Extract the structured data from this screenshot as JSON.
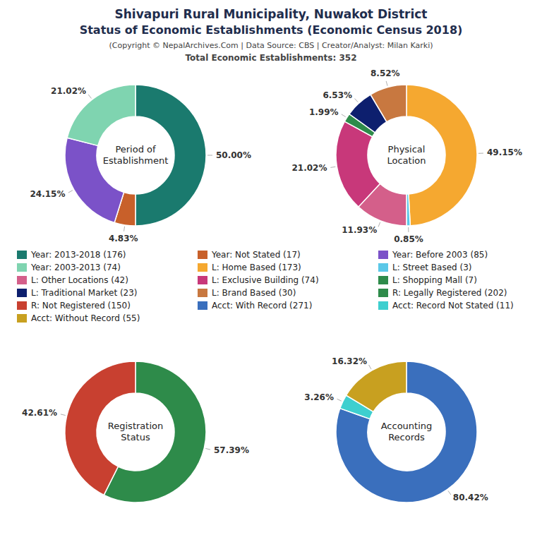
{
  "title": [
    "Shivapuri Rural Municipality, Nuwakot District",
    "Status of Economic Establishments (Economic Census 2018)"
  ],
  "subtitle": [
    "(Copyright © NepalArchives.Com | Data Source: CBS | Creator/Analyst: Milan Karki)",
    "Total Economic Establishments: 352"
  ],
  "chart_data": [
    {
      "type": "pie",
      "title": "Period of\nEstablishment",
      "categories": [
        "Year: 2013-2018 (176)",
        "Year: Not Stated (17)",
        "Year: Before 2003 (85)",
        "Year: 2003-2013 (74)"
      ],
      "values": [
        50.0,
        4.83,
        24.15,
        21.02
      ],
      "value_labels": [
        "50.00%",
        "4.83%",
        "24.15%",
        "21.02%"
      ],
      "colors": [
        "#1a7a6e",
        "#c8602a",
        "#7b52c8",
        "#7fd4b0"
      ],
      "data_labels": true
    },
    {
      "type": "pie",
      "title": "Physical\nLocation",
      "categories": [
        "L: Home Based (173)",
        "L: Street Based (3)",
        "L: Other Locations (42)",
        "L: Exclusive Building (74)",
        "L: Shopping Mall (7)",
        "L: Traditional Market (23)",
        "L: Brand Based (30)"
      ],
      "values": [
        49.15,
        0.85,
        11.93,
        21.02,
        1.99,
        6.53,
        8.52
      ],
      "value_labels": [
        "49.15%",
        "0.85%",
        "11.93%",
        "21.02%",
        "1.99%",
        "6.53%",
        "8.52%"
      ],
      "colors": [
        "#f5a830",
        "#5bc8e8",
        "#d45f8a",
        "#c8387a",
        "#2e8b4a",
        "#0d1f6e",
        "#c87840"
      ],
      "data_labels": true
    },
    {
      "type": "pie",
      "title": "Registration\nStatus",
      "categories": [
        "R: Legally Registered (202)",
        "R: Not Registered (150)"
      ],
      "values": [
        57.39,
        42.61
      ],
      "value_labels": [
        "57.39%",
        "42.61%"
      ],
      "colors": [
        "#2e8b4a",
        "#c84030"
      ],
      "data_labels": true
    },
    {
      "type": "pie",
      "title": "Accounting\nRecords",
      "categories": [
        "Acct: With Record (271)",
        "Acct: Record Not Stated (11)",
        "Acct: Without Record (55)"
      ],
      "values": [
        80.42,
        3.26,
        16.32
      ],
      "value_labels": [
        "80.42%",
        "3.26%",
        "16.32%"
      ],
      "colors": [
        "#3a6fbd",
        "#3ecfcf",
        "#c8a020"
      ],
      "data_labels": true
    }
  ]
}
